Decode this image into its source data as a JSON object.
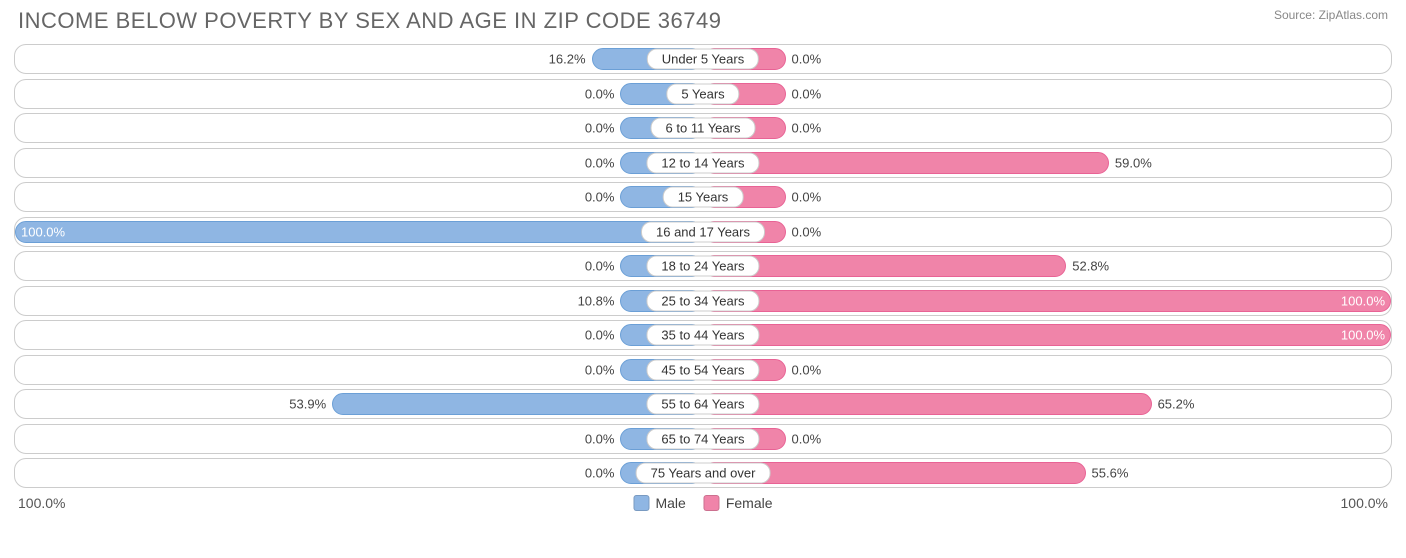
{
  "title": "INCOME BELOW POVERTY BY SEX AND AGE IN ZIP CODE 36749",
  "source": "Source: ZipAtlas.com",
  "axis_max_label_left": "100.0%",
  "axis_max_label_right": "100.0%",
  "legend": {
    "male": "Male",
    "female": "Female"
  },
  "colors": {
    "male_fill": "#8fb6e3",
    "male_border": "#6b9fd6",
    "female_fill": "#f084a9",
    "female_border": "#e86395",
    "row_border": "#cccccc",
    "title_color": "#666666",
    "text_color": "#444444",
    "background": "#ffffff"
  },
  "chart": {
    "type": "diverging-bar",
    "max_pct": 100.0,
    "min_bar_pct": 12.0,
    "rows": [
      {
        "category": "Under 5 Years",
        "male": 16.2,
        "male_label": "16.2%",
        "female": 0.0,
        "female_label": "0.0%"
      },
      {
        "category": "5 Years",
        "male": 0.0,
        "male_label": "0.0%",
        "female": 0.0,
        "female_label": "0.0%"
      },
      {
        "category": "6 to 11 Years",
        "male": 0.0,
        "male_label": "0.0%",
        "female": 0.0,
        "female_label": "0.0%"
      },
      {
        "category": "12 to 14 Years",
        "male": 0.0,
        "male_label": "0.0%",
        "female": 59.0,
        "female_label": "59.0%"
      },
      {
        "category": "15 Years",
        "male": 0.0,
        "male_label": "0.0%",
        "female": 0.0,
        "female_label": "0.0%"
      },
      {
        "category": "16 and 17 Years",
        "male": 100.0,
        "male_label": "100.0%",
        "female": 0.0,
        "female_label": "0.0%"
      },
      {
        "category": "18 to 24 Years",
        "male": 0.0,
        "male_label": "0.0%",
        "female": 52.8,
        "female_label": "52.8%"
      },
      {
        "category": "25 to 34 Years",
        "male": 10.8,
        "male_label": "10.8%",
        "female": 100.0,
        "female_label": "100.0%"
      },
      {
        "category": "35 to 44 Years",
        "male": 0.0,
        "male_label": "0.0%",
        "female": 100.0,
        "female_label": "100.0%"
      },
      {
        "category": "45 to 54 Years",
        "male": 0.0,
        "male_label": "0.0%",
        "female": 0.0,
        "female_label": "0.0%"
      },
      {
        "category": "55 to 64 Years",
        "male": 53.9,
        "male_label": "53.9%",
        "female": 65.2,
        "female_label": "65.2%"
      },
      {
        "category": "65 to 74 Years",
        "male": 0.0,
        "male_label": "0.0%",
        "female": 0.0,
        "female_label": "0.0%"
      },
      {
        "category": "75 Years and over",
        "male": 0.0,
        "male_label": "0.0%",
        "female": 55.6,
        "female_label": "55.6%"
      }
    ]
  }
}
